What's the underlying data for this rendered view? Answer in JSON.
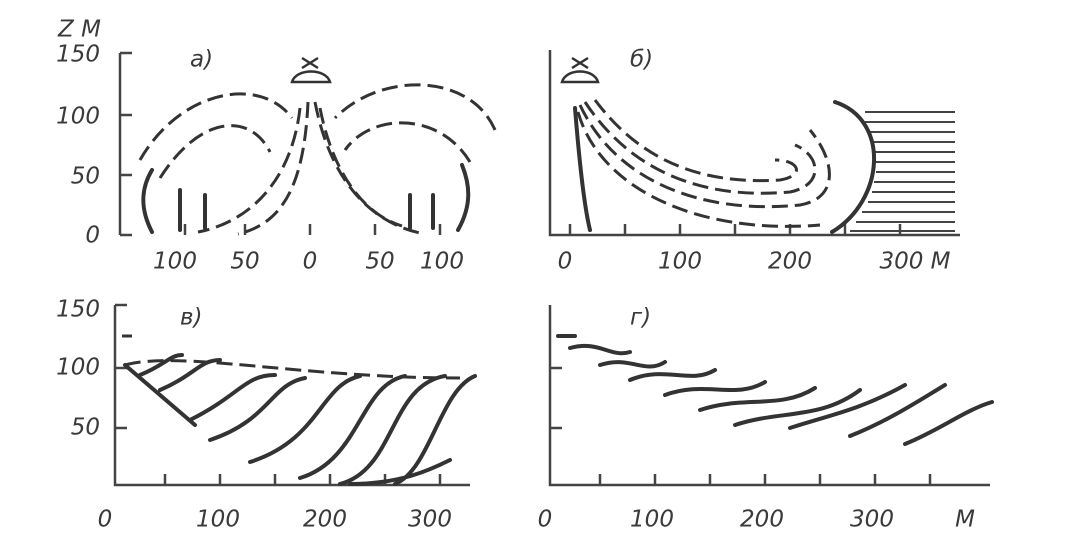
{
  "y_axis_label": "Z M",
  "panels": [
    {
      "label": "а)",
      "y_ticks": [
        "150",
        "100",
        "50",
        "0"
      ],
      "x_ticks": [
        "100",
        "50",
        "0",
        "50",
        "100"
      ]
    },
    {
      "label": "б)",
      "x_ticks": [
        "0",
        "100",
        "200",
        "300 M"
      ]
    },
    {
      "label": "в)",
      "y_ticks": [
        "150",
        "100",
        "50"
      ],
      "x_ticks": [
        "0",
        "100",
        "200",
        "300"
      ]
    },
    {
      "label": "г)",
      "x_ticks": [
        "0",
        "100",
        "200",
        "300",
        "M"
      ]
    }
  ]
}
